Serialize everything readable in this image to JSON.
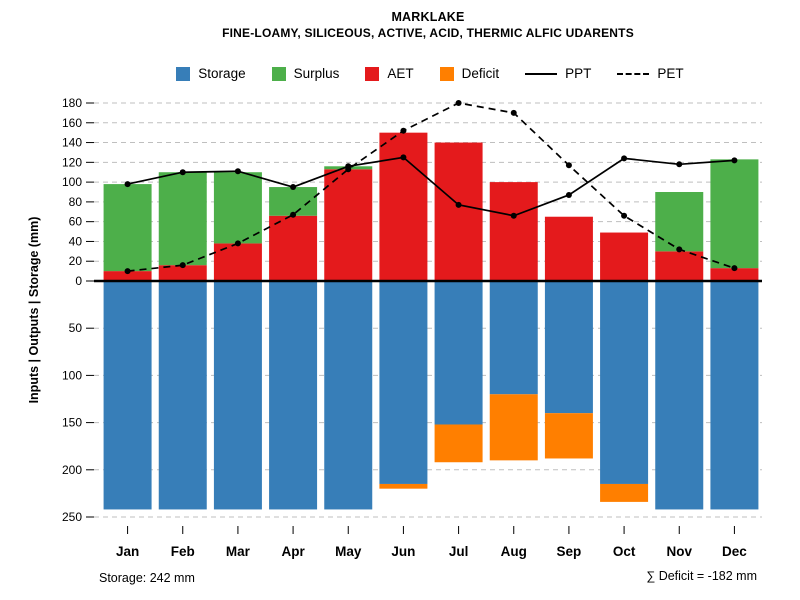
{
  "header": {
    "title": "MARKLAKE",
    "subtitle": "FINE-LOAMY, SILICEOUS, ACTIVE, ACID, THERMIC ALFIC UDARENTS"
  },
  "legend": {
    "items": [
      {
        "label": "Storage",
        "type": "square",
        "color": "#377eb8"
      },
      {
        "label": "Surplus",
        "type": "square",
        "color": "#4daf4a"
      },
      {
        "label": "AET",
        "type": "square",
        "color": "#e41a1c"
      },
      {
        "label": "Deficit",
        "type": "square",
        "color": "#ff7f00"
      },
      {
        "label": "PPT",
        "type": "solid-line",
        "color": "#000000"
      },
      {
        "label": "PET",
        "type": "dashed-line",
        "color": "#000000"
      }
    ]
  },
  "chart_data": {
    "type": "bar",
    "title": "MARKLAKE",
    "subtitle": "FINE-LOAMY, SILICEOUS, ACTIVE, ACID, THERMIC ALFIC UDARENTS",
    "categories": [
      "Jan",
      "Feb",
      "Mar",
      "Apr",
      "May",
      "Jun",
      "Jul",
      "Aug",
      "Sep",
      "Oct",
      "Nov",
      "Dec"
    ],
    "ylabel": "Inputs | Outputs | Storage  (mm)",
    "grid": true,
    "legend_position": "top",
    "upper_axis": {
      "ticks": [
        0,
        20,
        40,
        60,
        80,
        100,
        120,
        140,
        160,
        180
      ],
      "max": 180,
      "unit": "mm",
      "direction": "up"
    },
    "lower_axis": {
      "ticks": [
        50,
        100,
        150,
        200,
        250
      ],
      "max": 250,
      "unit": "mm",
      "direction": "down"
    },
    "series": [
      {
        "name": "AET",
        "type": "bar-up",
        "color": "#e41a1c",
        "values": [
          10,
          16,
          38,
          66,
          113,
          150,
          140,
          100,
          65,
          49,
          30,
          13
        ]
      },
      {
        "name": "Surplus",
        "type": "bar-up-stacked-on-AET",
        "color": "#4daf4a",
        "values": [
          88,
          94,
          72,
          29,
          3,
          0,
          0,
          0,
          0,
          0,
          60,
          110
        ]
      },
      {
        "name": "Storage",
        "type": "bar-down",
        "color": "#377eb8",
        "values": [
          242,
          242,
          242,
          242,
          242,
          215,
          152,
          120,
          140,
          215,
          242,
          242
        ]
      },
      {
        "name": "Deficit",
        "type": "bar-down-stacked-on-Storage",
        "color": "#ff7f00",
        "values": [
          0,
          0,
          0,
          0,
          0,
          5,
          40,
          70,
          48,
          19,
          0,
          0
        ]
      },
      {
        "name": "PPT",
        "type": "line",
        "style": "solid",
        "color": "#000000",
        "values": [
          98,
          110,
          111,
          95,
          116,
          125,
          77,
          66,
          87,
          124,
          118,
          122
        ]
      },
      {
        "name": "PET",
        "type": "line",
        "style": "dashed",
        "color": "#000000",
        "values": [
          10,
          16,
          38,
          67,
          113,
          152,
          180,
          170,
          117,
          66,
          32,
          13
        ]
      }
    ]
  },
  "footer": {
    "storage_note": "Storage: 242 mm",
    "deficit_note": "∑ Deficit = -182 mm"
  }
}
